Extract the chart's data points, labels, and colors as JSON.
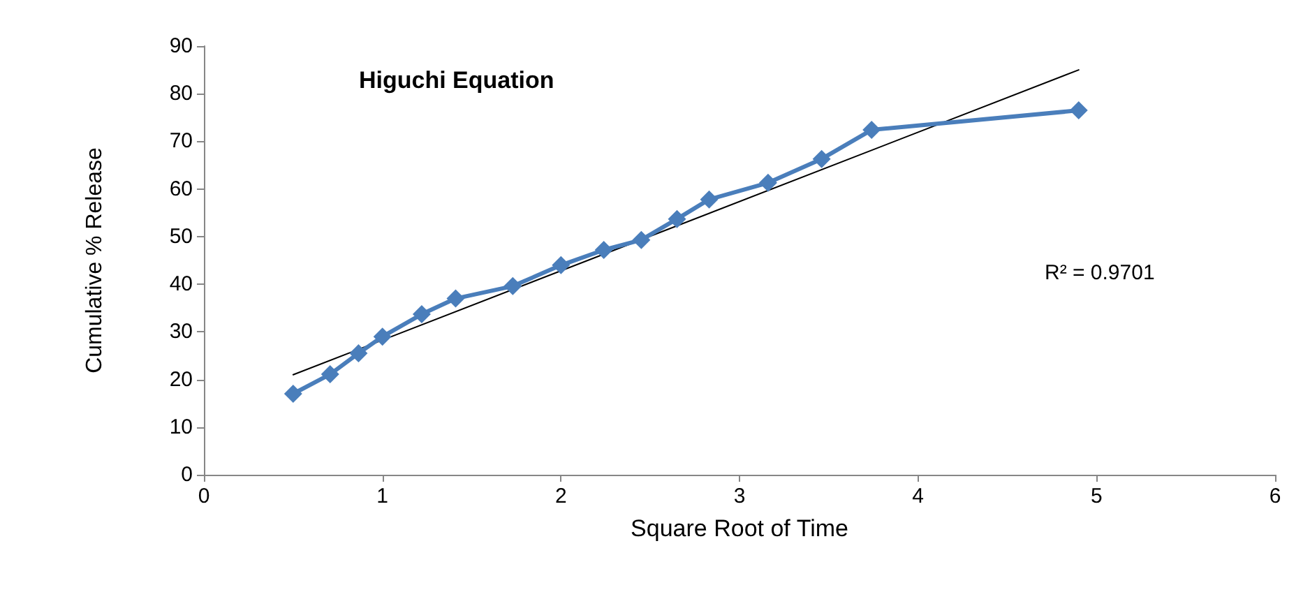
{
  "chart_data": {
    "type": "line",
    "title": "Higuchi Equation",
    "xlabel": "Square Root of Time",
    "ylabel": "Cumulative % Release",
    "x": [
      0.5,
      0.707,
      0.866,
      1,
      1.22,
      1.41,
      1.73,
      2,
      2.24,
      2.45,
      2.65,
      2.83,
      3.16,
      3.46,
      3.74,
      4.9
    ],
    "series": [
      {
        "color": "#4a7ebb",
        "values": [
          17,
          21.1,
          25.5,
          29,
          33.7,
          37,
          39.6,
          44,
          47.2,
          49.3,
          53.7,
          57.8,
          61.3,
          66.3,
          72.4,
          76.5
        ],
        "marker": "diamond"
      },
      {
        "type": "line",
        "color": "#000000",
        "x": [
          0.5,
          4.9
        ],
        "values": [
          21,
          85
        ],
        "marker": "none"
      }
    ],
    "annotations": [
      "R² = 0.9701"
    ],
    "xlim": [
      0,
      6
    ],
    "xticks": [
      0,
      1,
      2,
      3,
      4,
      5,
      6
    ],
    "ylim": [
      0,
      90
    ],
    "yticks": [
      0,
      10,
      20,
      30,
      40,
      50,
      60,
      70,
      80,
      90
    ],
    "grid": false
  }
}
